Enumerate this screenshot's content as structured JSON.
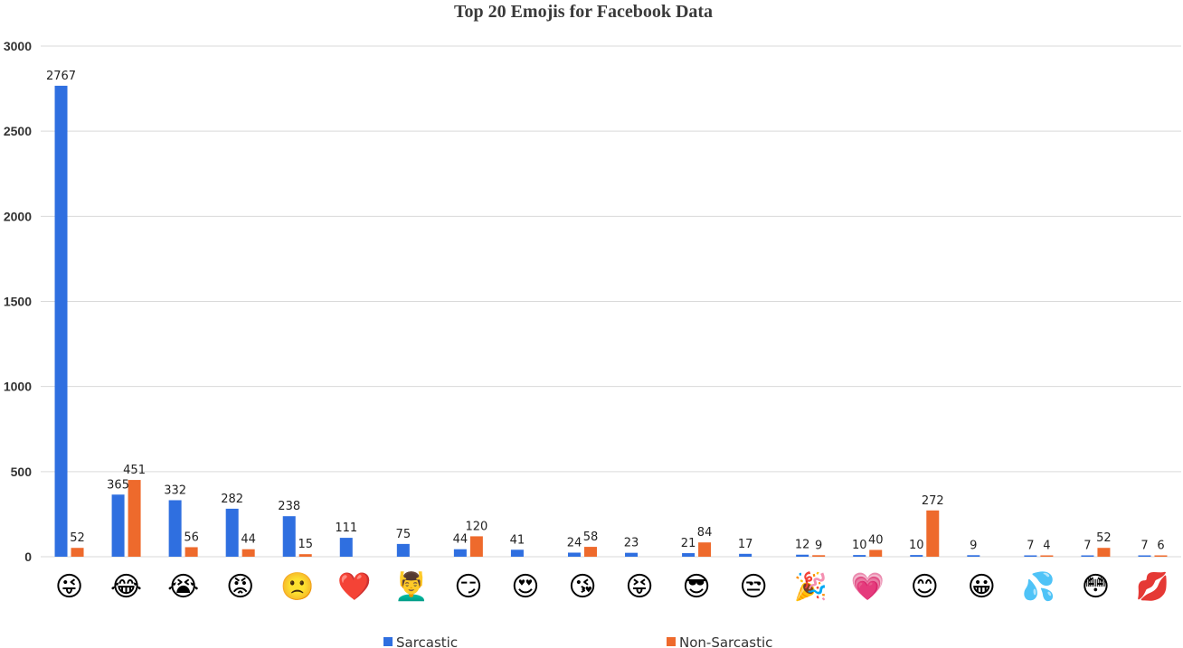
{
  "chart_data": {
    "type": "bar",
    "title": "Top 20 Emojis for Facebook Data",
    "xlabel": "",
    "ylabel": "",
    "ylim": [
      0,
      3000
    ],
    "yticks": [
      0,
      500,
      1000,
      1500,
      2000,
      2500,
      3000
    ],
    "grid": true,
    "legend_position": "bottom",
    "categories": [
      "😜",
      "😂",
      "😭",
      "😡",
      "🙁",
      "❤️",
      "💆‍♂️",
      "😏",
      "😍",
      "😘",
      "😝",
      "😎",
      "😒",
      "🎉",
      "💗",
      "😊",
      "😀",
      "💦",
      "😳",
      "💋"
    ],
    "series": [
      {
        "name": "Sarcastic",
        "color": "#2f6fe0",
        "values": [
          2767,
          365,
          332,
          282,
          238,
          111,
          75,
          44,
          41,
          24,
          23,
          21,
          17,
          12,
          10,
          10,
          9,
          7,
          7,
          7
        ]
      },
      {
        "name": "Non-Sarcastic",
        "color": "#ee6a2c",
        "values": [
          52,
          451,
          56,
          44,
          15,
          null,
          null,
          120,
          null,
          58,
          null,
          84,
          null,
          9,
          40,
          272,
          null,
          4,
          52,
          6
        ]
      }
    ]
  }
}
